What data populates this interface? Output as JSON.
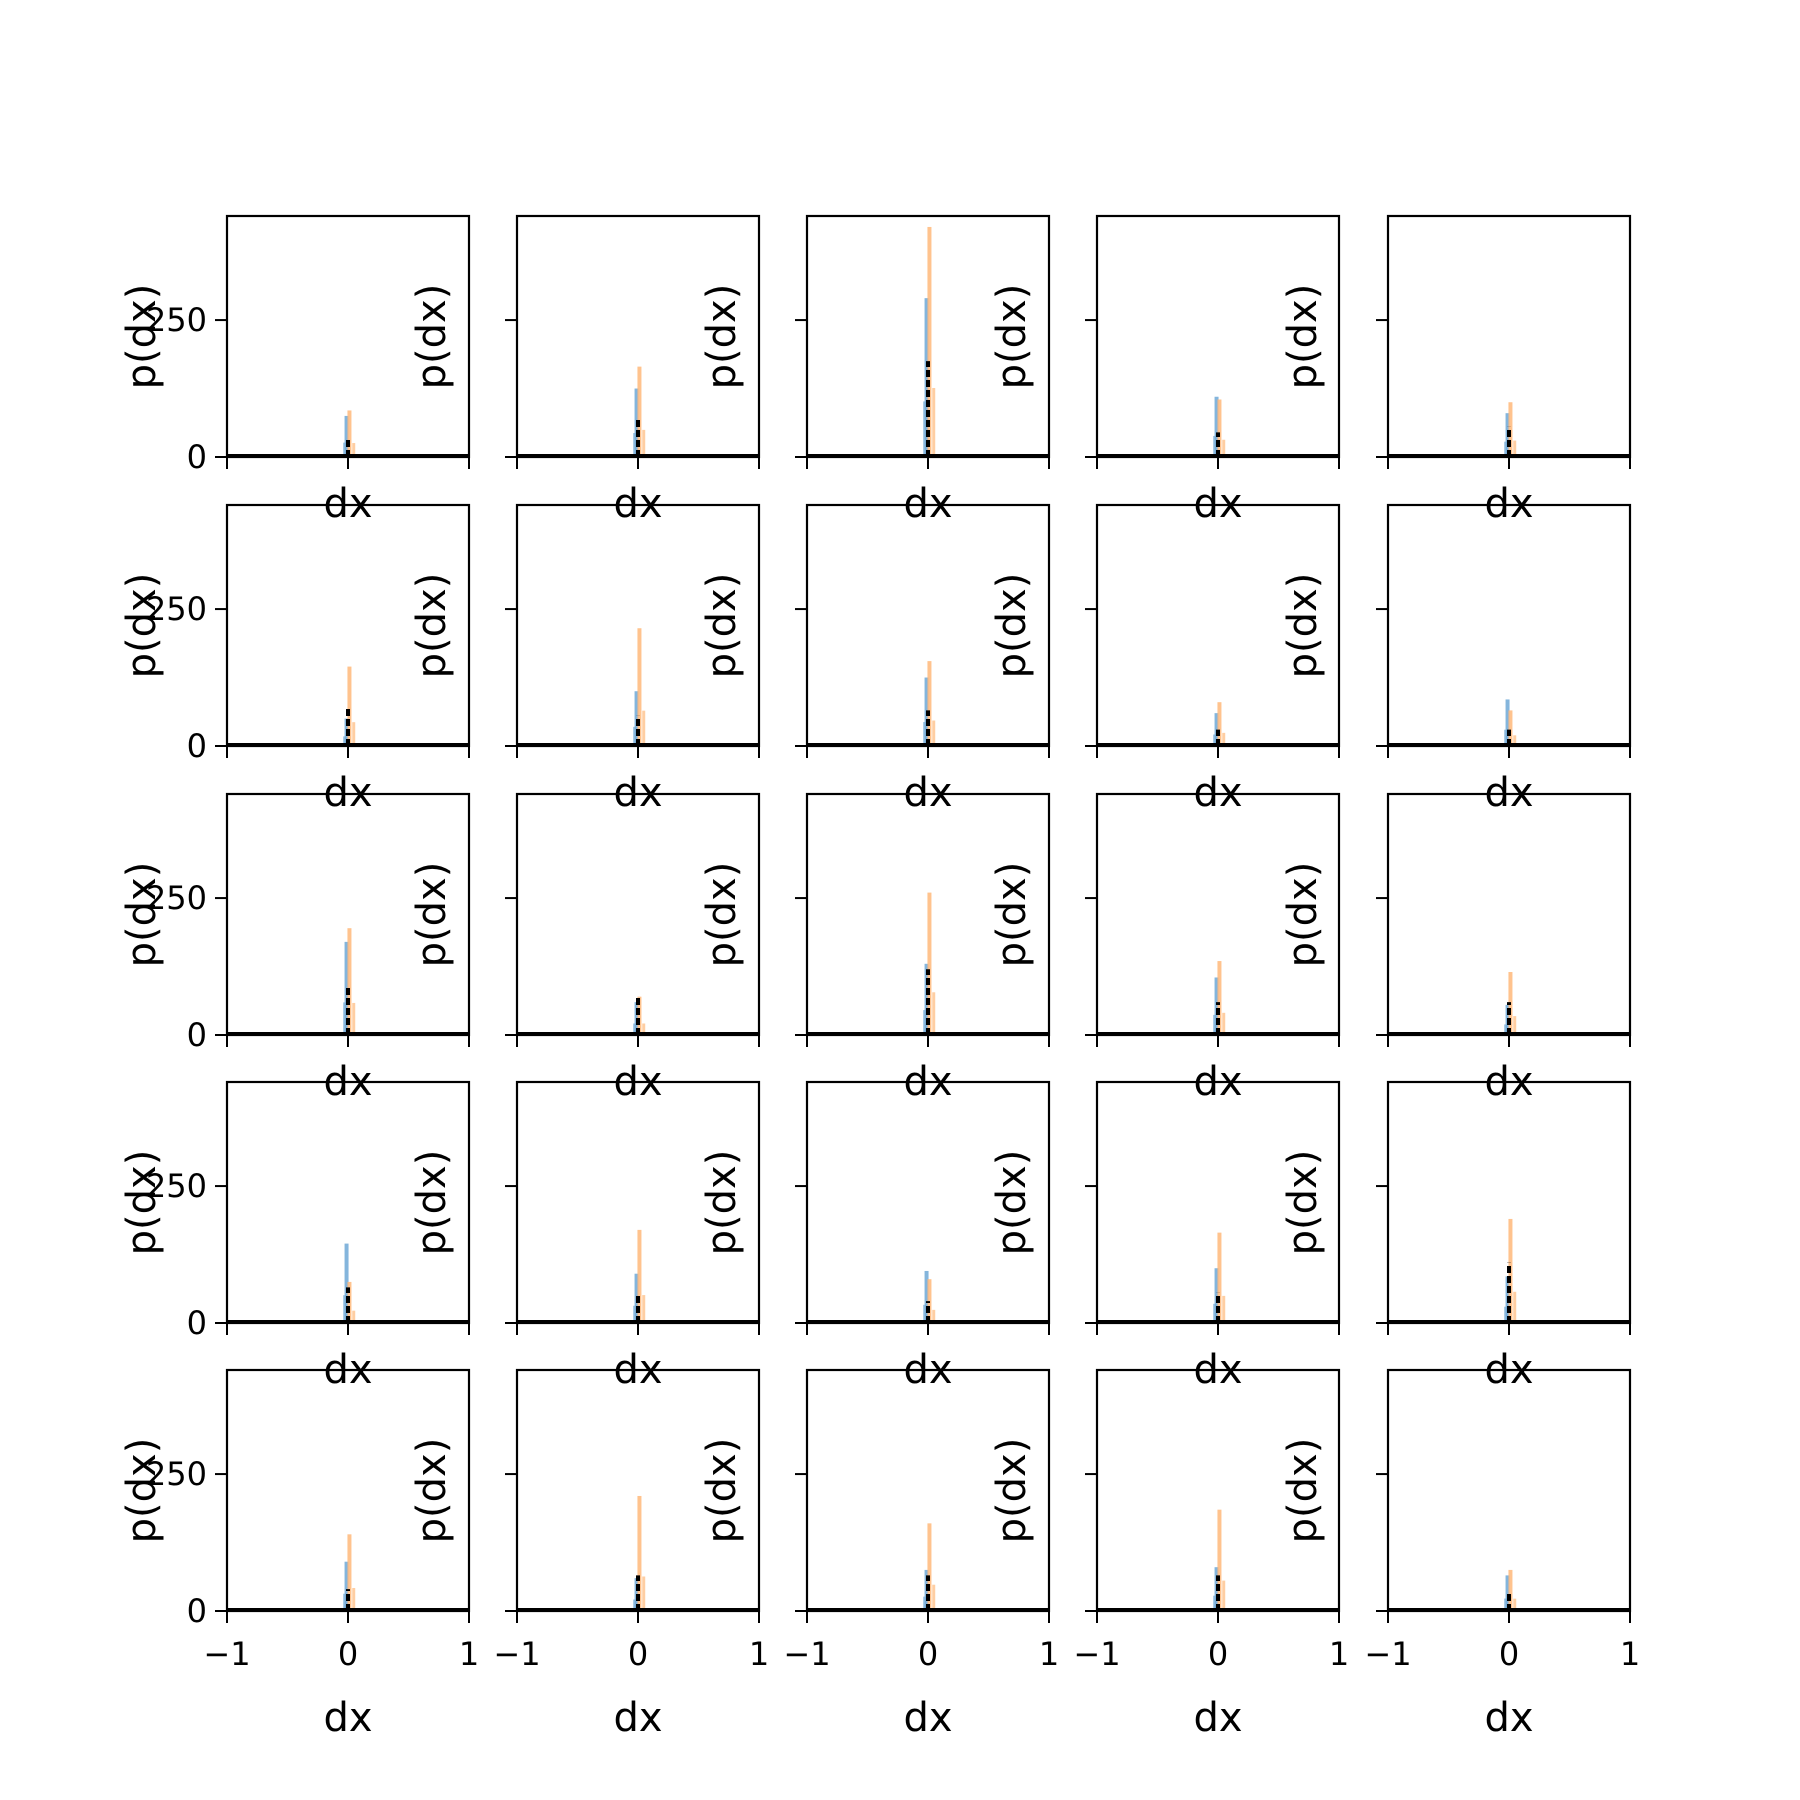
{
  "figure": {
    "rows": 5,
    "cols": 5,
    "colors": {
      "histogram_a": "#6fa8d6",
      "histogram_b": "#ffb97a",
      "reference_line": "#000000"
    }
  },
  "chart_data": {
    "type": "histogram-grid",
    "xlabel": "dx",
    "ylabel": "p(dx)",
    "xlim": [
      -1,
      1
    ],
    "ylim": [
      0,
      440
    ],
    "xticks": [
      -1,
      0,
      1
    ],
    "xtick_labels": [
      "−1",
      "0",
      "1"
    ],
    "yticks": [
      0,
      250
    ],
    "ytick_labels": [
      "0",
      "250"
    ],
    "grid": false,
    "panels": [
      {
        "row": 1,
        "col": 1,
        "peak_blue": 75,
        "peak_orange": 85,
        "peak_black": 35
      },
      {
        "row": 1,
        "col": 2,
        "peak_blue": 125,
        "peak_orange": 165,
        "peak_black": 70
      },
      {
        "row": 1,
        "col": 3,
        "peak_blue": 290,
        "peak_orange": 420,
        "peak_black": 175
      },
      {
        "row": 1,
        "col": 4,
        "peak_blue": 110,
        "peak_orange": 105,
        "peak_black": 45
      },
      {
        "row": 1,
        "col": 5,
        "peak_blue": 80,
        "peak_orange": 100,
        "peak_black": 55
      },
      {
        "row": 2,
        "col": 1,
        "peak_blue": 50,
        "peak_orange": 145,
        "peak_black": 70
      },
      {
        "row": 2,
        "col": 2,
        "peak_blue": 100,
        "peak_orange": 215,
        "peak_black": 55
      },
      {
        "row": 2,
        "col": 3,
        "peak_blue": 125,
        "peak_orange": 155,
        "peak_black": 65
      },
      {
        "row": 2,
        "col": 4,
        "peak_blue": 60,
        "peak_orange": 80,
        "peak_black": 30
      },
      {
        "row": 2,
        "col": 5,
        "peak_blue": 85,
        "peak_orange": 65,
        "peak_black": 30
      },
      {
        "row": 3,
        "col": 1,
        "peak_blue": 170,
        "peak_orange": 195,
        "peak_black": 90
      },
      {
        "row": 3,
        "col": 2,
        "peak_blue": 60,
        "peak_orange": 70,
        "peak_black": 70
      },
      {
        "row": 3,
        "col": 3,
        "peak_blue": 130,
        "peak_orange": 260,
        "peak_black": 120
      },
      {
        "row": 3,
        "col": 4,
        "peak_blue": 105,
        "peak_orange": 135,
        "peak_black": 60
      },
      {
        "row": 3,
        "col": 5,
        "peak_blue": 55,
        "peak_orange": 115,
        "peak_black": 60
      },
      {
        "row": 4,
        "col": 1,
        "peak_blue": 145,
        "peak_orange": 75,
        "peak_black": 65
      },
      {
        "row": 4,
        "col": 2,
        "peak_blue": 90,
        "peak_orange": 170,
        "peak_black": 50
      },
      {
        "row": 4,
        "col": 3,
        "peak_blue": 95,
        "peak_orange": 80,
        "peak_black": 40
      },
      {
        "row": 4,
        "col": 4,
        "peak_blue": 100,
        "peak_orange": 165,
        "peak_black": 55
      },
      {
        "row": 4,
        "col": 5,
        "peak_blue": 85,
        "peak_orange": 190,
        "peak_black": 110
      },
      {
        "row": 5,
        "col": 1,
        "peak_blue": 90,
        "peak_orange": 140,
        "peak_black": 40
      },
      {
        "row": 5,
        "col": 2,
        "peak_blue": 60,
        "peak_orange": 210,
        "peak_black": 65
      },
      {
        "row": 5,
        "col": 3,
        "peak_blue": 75,
        "peak_orange": 160,
        "peak_black": 65
      },
      {
        "row": 5,
        "col": 4,
        "peak_blue": 80,
        "peak_orange": 185,
        "peak_black": 65
      },
      {
        "row": 5,
        "col": 5,
        "peak_blue": 65,
        "peak_orange": 75,
        "peak_black": 35
      }
    ]
  }
}
